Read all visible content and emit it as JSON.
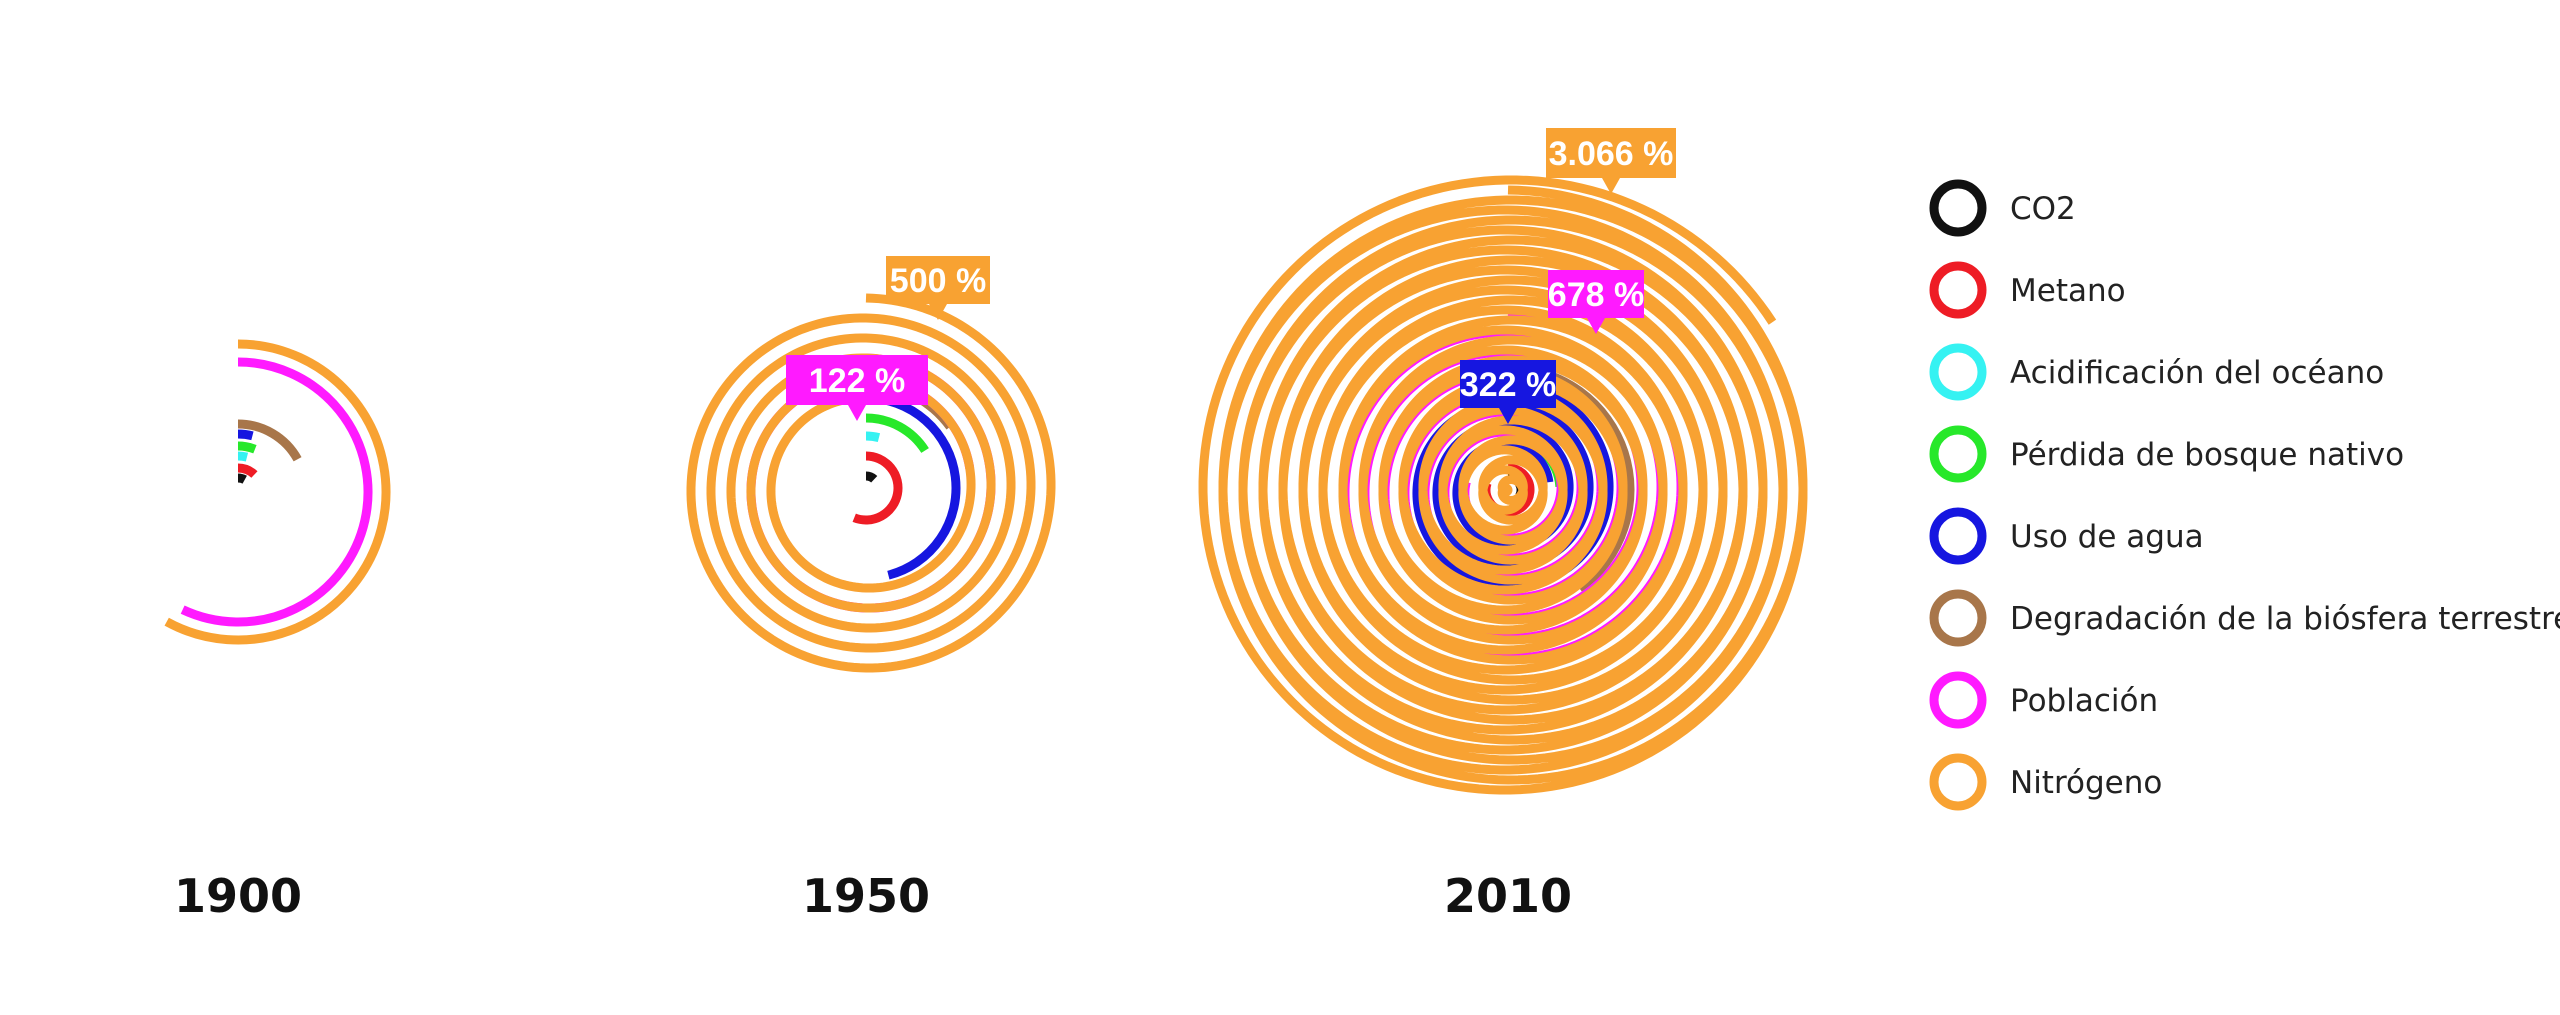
{
  "chart_data": {
    "type": "spiral",
    "title": "",
    "unit": "%",
    "legend_position": "right",
    "series": [
      {
        "key": "co2",
        "name": "CO2",
        "color": "#111111"
      },
      {
        "key": "metano",
        "name": "Metano",
        "color": "#ee1c25"
      },
      {
        "key": "acidificacion",
        "name": "Acidificación del océano",
        "color": "#35f2f2"
      },
      {
        "key": "bosque",
        "name": "Pérdida de bosque nativo",
        "color": "#27e82a"
      },
      {
        "key": "agua",
        "name": "Uso de agua",
        "color": "#1616e0"
      },
      {
        "key": "biosfera",
        "name": "Degradación de la biósfera terrestre",
        "color": "#a8764a"
      },
      {
        "key": "poblacion",
        "name": "Población",
        "color": "#ff1aff"
      },
      {
        "key": "nitrogeno",
        "name": "Nitrógeno",
        "color": "#f8a232"
      }
    ],
    "panels": [
      {
        "year": "1900",
        "values": {
          "co2": 8,
          "metano": 12,
          "acidificacion": 1,
          "bosque": 6,
          "agua": 1,
          "biosfera": 17,
          "poblacion": 57,
          "nitrogeno": 58
        },
        "callouts": []
      },
      {
        "year": "1950",
        "values": {
          "co2": 12,
          "metano": 56,
          "acidificacion": 3,
          "bosque": 16,
          "agua": 46,
          "biosfera": 15,
          "poblacion": 122,
          "nitrogeno": 500
        },
        "callouts": [
          {
            "series": "poblacion",
            "label": "122 %"
          },
          {
            "series": "nitrogeno",
            "label": "500 %"
          }
        ]
      },
      {
        "year": "2010",
        "values": {
          "co2": 33,
          "metano": 80,
          "acidificacion": 15,
          "bosque": 24,
          "agua": 322,
          "biosfera": 40,
          "poblacion": 678,
          "nitrogeno": 3066
        },
        "callouts": [
          {
            "series": "agua",
            "label": "322 %"
          },
          {
            "series": "poblacion",
            "label": "678 %"
          },
          {
            "series": "nitrogeno",
            "label": "3.066 %"
          }
        ]
      }
    ]
  }
}
